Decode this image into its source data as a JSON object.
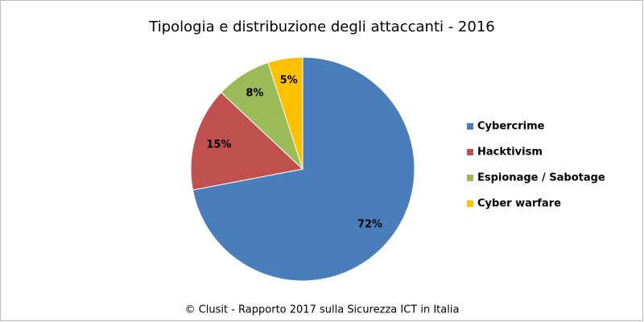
{
  "chart_data": {
    "type": "pie",
    "title": "Tipologia e distribuzione degli attaccanti -  2016",
    "categories": [
      "Cybercrime",
      "Hacktivism",
      "Espionage / Sabotage",
      "Cyber warfare"
    ],
    "values": [
      72,
      15,
      8,
      5
    ],
    "value_labels": [
      "72%",
      "15%",
      "8%",
      "5%"
    ],
    "colors": [
      "#4a7ebb",
      "#c0504d",
      "#9bbb59",
      "#ffc000"
    ],
    "legend": "right",
    "source": "© Clusit - Rapporto 2017 sulla Sicurezza ICT in Italia"
  }
}
